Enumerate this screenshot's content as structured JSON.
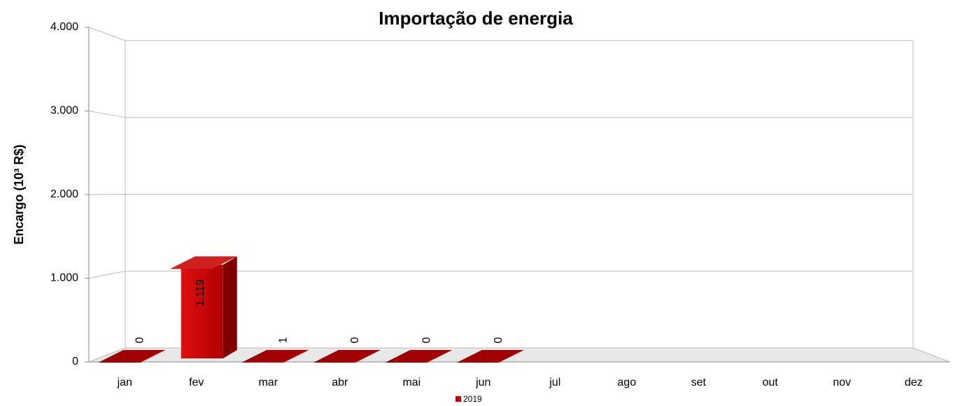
{
  "chart_data": {
    "type": "bar3d",
    "title": "Importação de energia",
    "y_label": "Encargo (10³ R$)",
    "categories": [
      "jan",
      "fev",
      "mar",
      "abr",
      "mai",
      "jun",
      "jul",
      "ago",
      "set",
      "out",
      "nov",
      "dez"
    ],
    "series": [
      {
        "name": "2019",
        "color": "#c00000",
        "values": [
          0,
          1119,
          1,
          0,
          0,
          0,
          null,
          null,
          null,
          null,
          null,
          null
        ],
        "value_labels": [
          "0",
          "1.119",
          "1",
          "0",
          "0",
          "0",
          null,
          null,
          null,
          null,
          null,
          null
        ]
      }
    ],
    "ylim": [
      0,
      4000
    ],
    "yticks": [
      0,
      {
        "value": 1000,
        "label": "1.000"
      },
      {
        "value": 2000,
        "label": "2.000"
      },
      {
        "value": 3000,
        "label": "3.000"
      },
      {
        "value": 4000,
        "label": "4.000"
      }
    ],
    "grid": true
  }
}
